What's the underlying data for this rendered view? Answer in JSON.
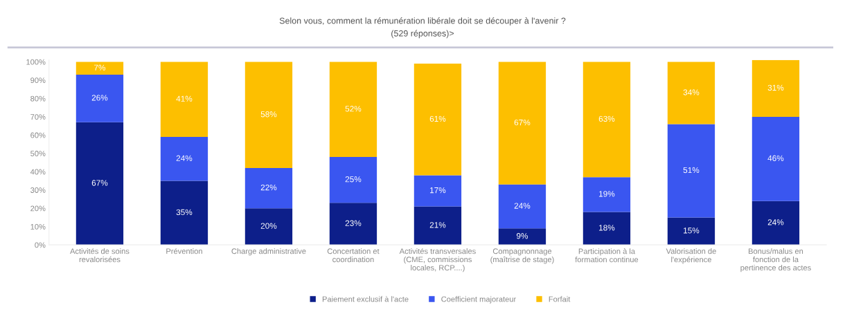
{
  "chart_data": {
    "type": "bar",
    "stacked": true,
    "title": "Selon vous, comment la rémunération libérale doit se découper à l'avenir ?",
    "subtitle": "(529 réponses)>",
    "categories": [
      "Activités de soins\nrevalorisées",
      "Prévention",
      "Charge administrative",
      "Concertation et\ncoordination",
      "Activités transversales\n(CME, commissions\nlocales, RCP....)",
      "Compagnonnage\n(maîtrise de stage)",
      "Participation à la\nformation continue",
      "Valorisation de\nl'expérience",
      "Bonus/malus en\nfonction de la\npertinence des actes"
    ],
    "series": [
      {
        "name": "Paiement exclusif à l'acte",
        "color": "#0d1f8a",
        "values": [
          67,
          35,
          20,
          23,
          21,
          9,
          18,
          15,
          24
        ],
        "value_labels": [
          "67%",
          "35%",
          "20%",
          "23%",
          "21%",
          "9%",
          "18%",
          "15%",
          "24%"
        ]
      },
      {
        "name": "Coefficient majorateur",
        "color": "#3a56f0",
        "values": [
          26,
          24,
          22,
          25,
          17,
          24,
          19,
          51,
          46
        ],
        "value_labels": [
          "26%",
          "24%",
          "22%",
          "25%",
          "17%",
          "24%",
          "19%",
          "51%",
          "46%"
        ]
      },
      {
        "name": "Forfait",
        "color": "#fdbf00",
        "values": [
          7,
          41,
          58,
          52,
          61,
          67,
          63,
          34,
          31
        ],
        "value_labels": [
          "7%",
          "41%",
          "58%",
          "52%",
          "61%",
          "67%",
          "63%",
          "34%",
          "31%"
        ]
      }
    ],
    "ylim": [
      0,
      101
    ],
    "yticks": [
      {
        "value": 0,
        "label": "0%"
      },
      {
        "value": 10,
        "label": "10%"
      },
      {
        "value": 20,
        "label": "20%"
      },
      {
        "value": 30,
        "label": "30%"
      },
      {
        "value": 40,
        "label": "40%"
      },
      {
        "value": 50,
        "label": "50%"
      },
      {
        "value": 60,
        "label": "60%"
      },
      {
        "value": 70,
        "label": "70%"
      },
      {
        "value": 80,
        "label": "80%"
      },
      {
        "value": 90,
        "label": "90%"
      },
      {
        "value": 100,
        "label": "100%"
      }
    ],
    "grid": false,
    "legend": "bottom"
  }
}
